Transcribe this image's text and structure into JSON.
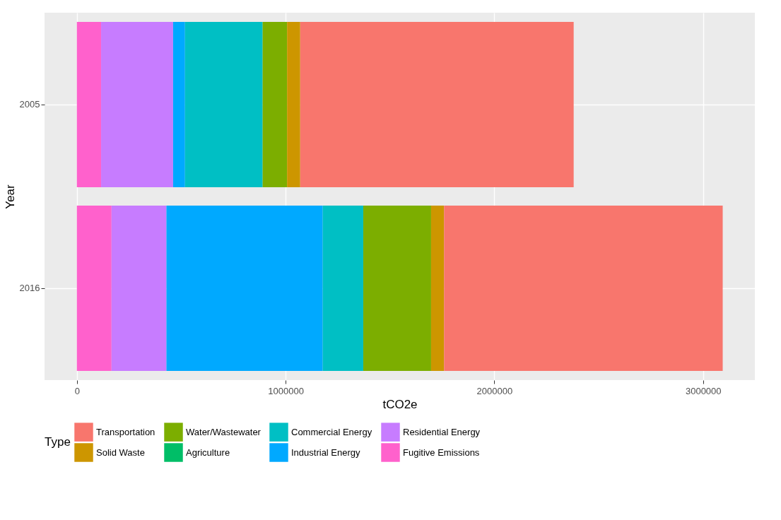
{
  "chart_data": {
    "type": "bar",
    "orientation": "horizontal",
    "stacked": true,
    "categories": [
      "2005",
      "2016"
    ],
    "series": [
      {
        "name": "Fugitive Emissions",
        "color": "#ff61cc",
        "values": [
          116000,
          166000
        ]
      },
      {
        "name": "Residential Energy",
        "color": "#c77cff",
        "values": [
          345000,
          263000
        ]
      },
      {
        "name": "Industrial Energy",
        "color": "#00a9ff",
        "values": [
          57000,
          749000
        ]
      },
      {
        "name": "Commercial Energy",
        "color": "#00bfc4",
        "values": [
          372000,
          194000
        ]
      },
      {
        "name": "Agriculture",
        "color": "#00be67",
        "values": [
          null,
          null
        ]
      },
      {
        "name": "Water/Wastewater",
        "color": "#7cae00",
        "values": [
          117000,
          325000
        ]
      },
      {
        "name": "Solid Waste",
        "color": "#cd9600",
        "values": [
          63000,
          62000
        ]
      },
      {
        "name": "Transportation",
        "color": "#f8766d",
        "values": [
          1310000,
          1335000
        ]
      }
    ],
    "xlim": [
      -155000,
      3248000
    ],
    "xticks": [
      0,
      1000000,
      2000000,
      3000000
    ],
    "xlabel": "tCO2e",
    "ylabel": "Year",
    "legend_title": "Type",
    "legend": "bottom",
    "grid": true
  }
}
